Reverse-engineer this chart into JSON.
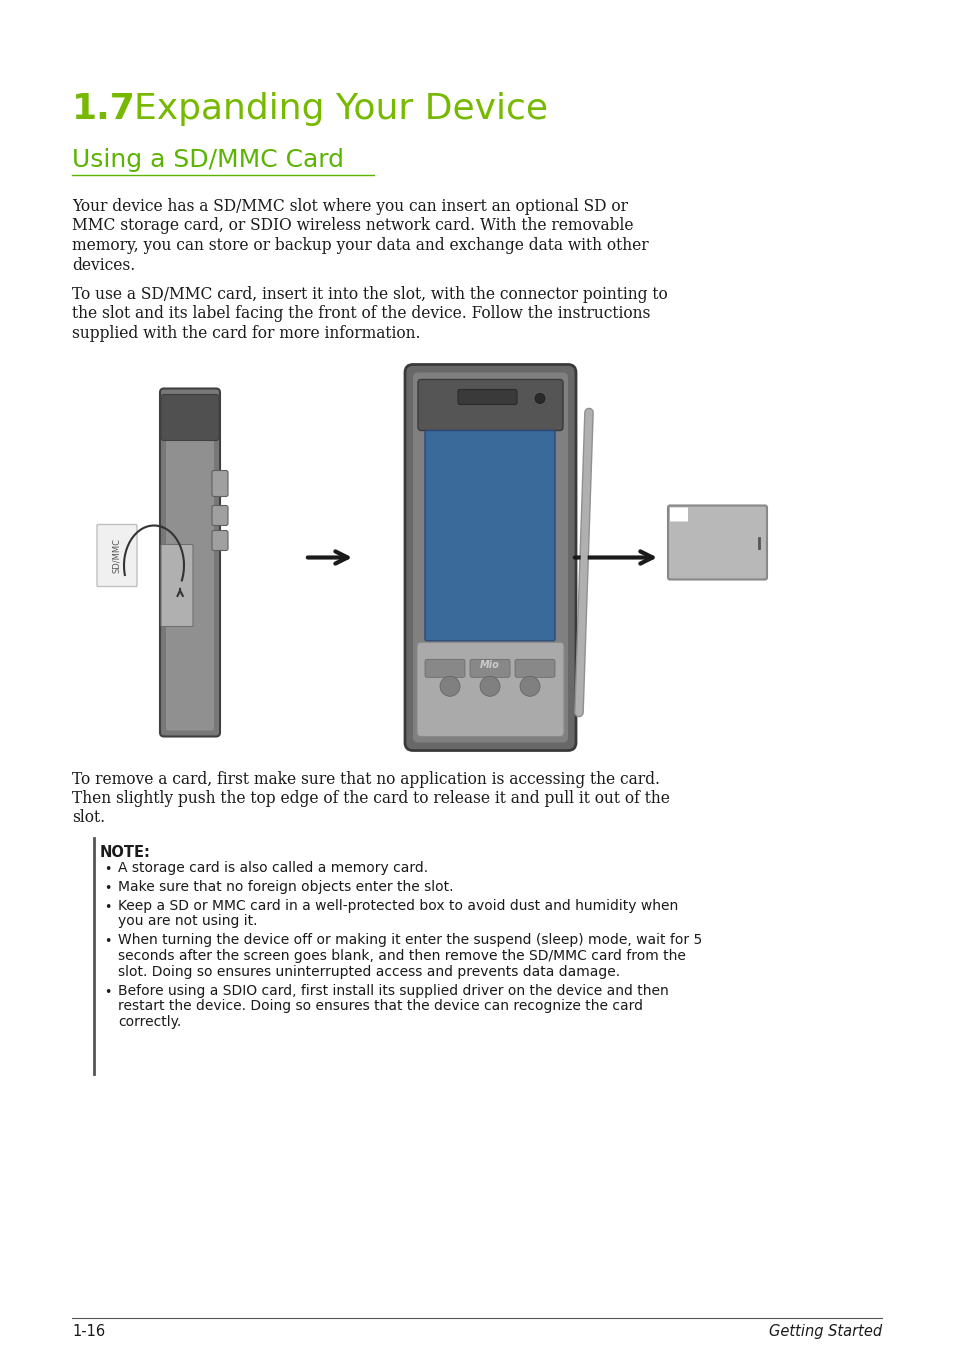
{
  "bg_color": "#ffffff",
  "heading1_number": "1.7",
  "heading1_text": "Expanding Your Device",
  "heading1_color": "#76b900",
  "heading1_fontsize": 26,
  "heading2_text": "Using a SD/MMC Card",
  "heading2_color": "#5ab400",
  "heading2_fontsize": 18,
  "body_fontsize": 11.2,
  "body_color": "#1a1a1a",
  "note_label": "NOTE:",
  "note_label_fontsize": 10.5,
  "bullet_fontsize": 10.0,
  "para1_lines": [
    "Your device has a SD/MMC slot where you can insert an optional SD or",
    "MMC storage card, or SDIO wireless network card. With the removable",
    "memory, you can store or backup your data and exchange data with other",
    "devices."
  ],
  "para2_lines": [
    "To use a SD/MMC card, insert it into the slot, with the connector pointing to",
    "the slot and its label facing the front of the device. Follow the instructions",
    "supplied with the card for more information."
  ],
  "para3_lines": [
    "To remove a card, first make sure that no application is accessing the card.",
    "Then slightly push the top edge of the card to release it and pull it out of the",
    "slot."
  ],
  "bullet_items": [
    [
      "A storage card is also called a memory card."
    ],
    [
      "Make sure that no foreign objects enter the slot."
    ],
    [
      "Keep a SD or MMC card in a well-protected box to avoid dust and humidity when",
      "you are not using it."
    ],
    [
      "When turning the device off or making it enter the suspend (sleep) mode, wait for 5",
      "seconds after the screen goes blank, and then remove the SD/MMC card from the",
      "slot. Doing so ensures uninterrupted access and prevents data damage."
    ],
    [
      "Before using a SDIO card, first install its supplied driver on the device and then",
      "restart the device. Doing so ensures that the device can recognize the card",
      "correctly."
    ]
  ],
  "footer_left": "1-16",
  "footer_right": "Getting Started",
  "footer_fontsize": 10.5
}
